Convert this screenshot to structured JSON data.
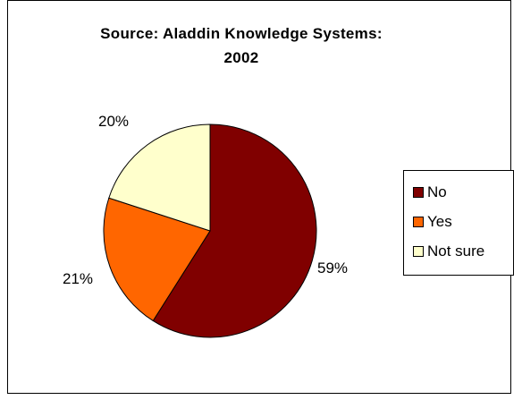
{
  "chart_data": {
    "type": "pie",
    "title": "Source: Aladdin Knowledge Systems: 2002",
    "title_lines": [
      "Source: Aladdin Knowledge Systems:",
      "2002"
    ],
    "categories": [
      "No",
      "Yes",
      "Not sure"
    ],
    "values": [
      59,
      21,
      20
    ],
    "labels": [
      "59%",
      "21%",
      "20%"
    ],
    "colors": [
      "#800000",
      "#FF6600",
      "#FFFFCC"
    ],
    "legend": "right",
    "start_angle_deg": 0,
    "direction": "clockwise"
  }
}
